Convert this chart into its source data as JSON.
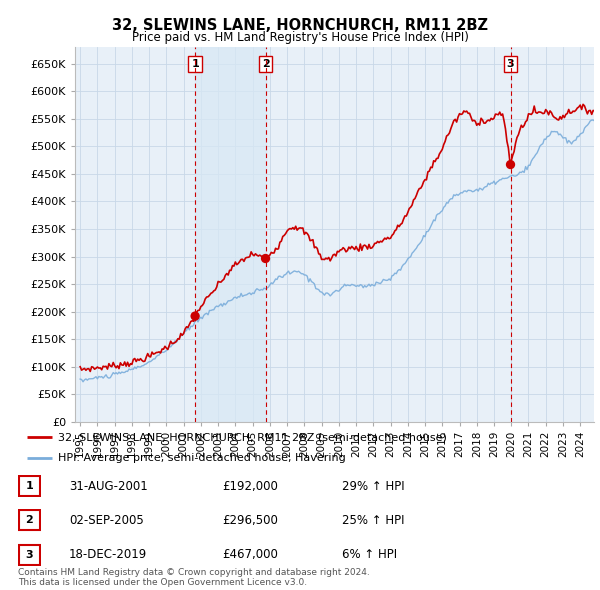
{
  "title1": "32, SLEWINS LANE, HORNCHURCH, RM11 2BZ",
  "title2": "Price paid vs. HM Land Registry's House Price Index (HPI)",
  "legend_line1": "32, SLEWINS LANE, HORNCHURCH, RM11 2BZ (semi-detached house)",
  "legend_line2": "HPI: Average price, semi-detached house, Havering",
  "footnote": "Contains HM Land Registry data © Crown copyright and database right 2024.\nThis data is licensed under the Open Government Licence v3.0.",
  "sale_color": "#cc0000",
  "hpi_color": "#7aaddb",
  "hpi_fill_color": "#dce9f5",
  "shade_color": "#d8e8f5",
  "grid_color": "#c8d8e8",
  "background_color": "#ffffff",
  "plot_bg_color": "#e8f0f8",
  "transactions": [
    {
      "num": 1,
      "date": "31-AUG-2001",
      "price": 192000,
      "hpi_pct": "29% ↑ HPI",
      "x": 2001.667
    },
    {
      "num": 2,
      "date": "02-SEP-2005",
      "price": 296500,
      "hpi_pct": "25% ↑ HPI",
      "x": 2005.75
    },
    {
      "num": 3,
      "date": "18-DEC-2019",
      "price": 467000,
      "hpi_pct": "6% ↑ HPI",
      "x": 2019.958
    }
  ],
  "vline_color": "#cc0000",
  "ylim": [
    0,
    680000
  ],
  "xlim": [
    1994.7,
    2024.8
  ],
  "ytick_vals": [
    0,
    50000,
    100000,
    150000,
    200000,
    250000,
    300000,
    350000,
    400000,
    450000,
    500000,
    550000,
    600000,
    650000
  ],
  "ytick_labels": [
    "£0",
    "£50K",
    "£100K",
    "£150K",
    "£200K",
    "£250K",
    "£300K",
    "£350K",
    "£400K",
    "£450K",
    "£500K",
    "£550K",
    "£600K",
    "£650K"
  ],
  "xticks": [
    1995,
    1996,
    1997,
    1998,
    1999,
    2000,
    2001,
    2002,
    2003,
    2004,
    2005,
    2006,
    2007,
    2008,
    2009,
    2010,
    2011,
    2012,
    2013,
    2014,
    2015,
    2016,
    2017,
    2018,
    2019,
    2020,
    2021,
    2022,
    2023,
    2024
  ],
  "table_rows": [
    [
      "1",
      "31-AUG-2001",
      "£192,000",
      "29% ↑ HPI"
    ],
    [
      "2",
      "02-SEP-2005",
      "£296,500",
      "25% ↑ HPI"
    ],
    [
      "3",
      "18-DEC-2019",
      "£467,000",
      "6% ↑ HPI"
    ]
  ]
}
